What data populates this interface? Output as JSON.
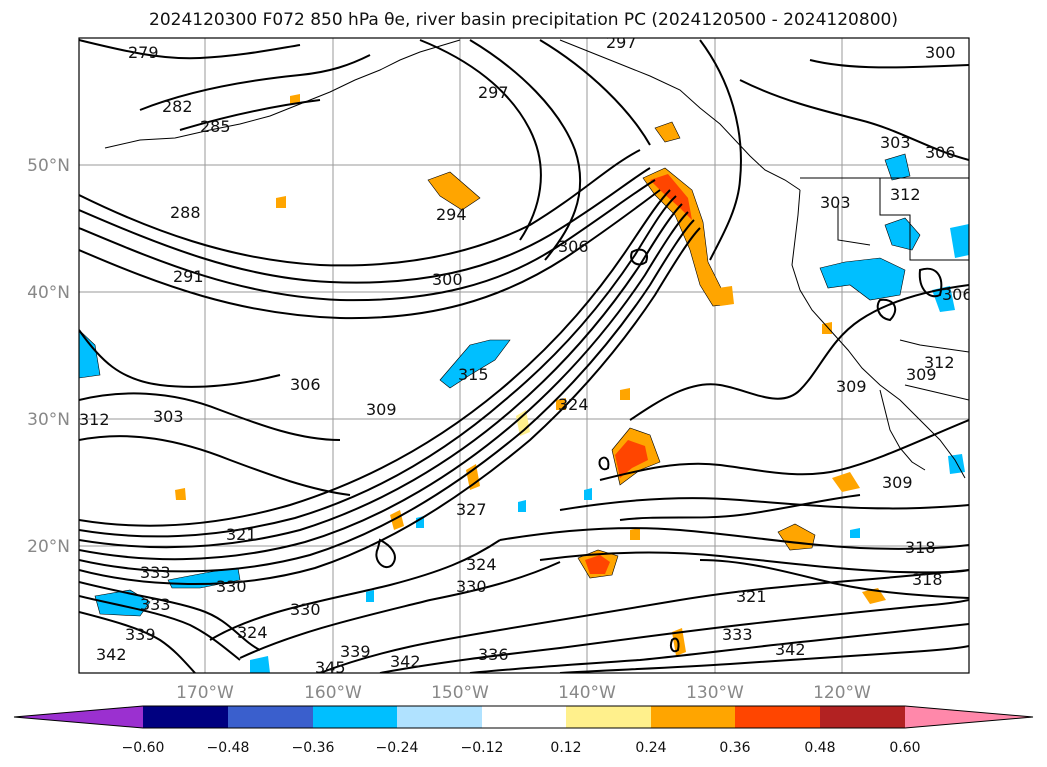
{
  "title": "2024120300 F072 850 hPa θe, river basin precipitation PC (2024120500 - 2024120800)",
  "map": {
    "lat_labels": [
      "50°N",
      "40°N",
      "30°N",
      "20°N"
    ],
    "lon_labels": [
      "170°W",
      "160°W",
      "150°W",
      "140°W",
      "130°W",
      "120°W"
    ],
    "contour_labels": [
      "279",
      "282",
      "285",
      "288",
      "291",
      "294",
      "297",
      "297",
      "300",
      "300",
      "303",
      "303",
      "303",
      "306",
      "306",
      "306",
      "306",
      "309",
      "309",
      "309",
      "309",
      "312",
      "312",
      "312",
      "315",
      "318",
      "318",
      "321",
      "321",
      "324",
      "324",
      "324",
      "327",
      "330",
      "330",
      "330",
      "333",
      "333",
      "333",
      "336",
      "339",
      "339",
      "342",
      "342",
      "342",
      "345"
    ]
  },
  "colorbar": {
    "tick_labels": [
      "−0.60",
      "−0.48",
      "−0.36",
      "−0.24",
      "−0.12",
      "0.12",
      "0.24",
      "0.36",
      "0.48",
      "0.60"
    ],
    "colors": [
      "#9b30d0",
      "#000080",
      "#3a5fcd",
      "#00bfff",
      "#b0e2ff",
      "#ffffff",
      "#fff08c",
      "#ffa500",
      "#ff4500",
      "#b22222",
      "#ff88aa"
    ]
  }
}
